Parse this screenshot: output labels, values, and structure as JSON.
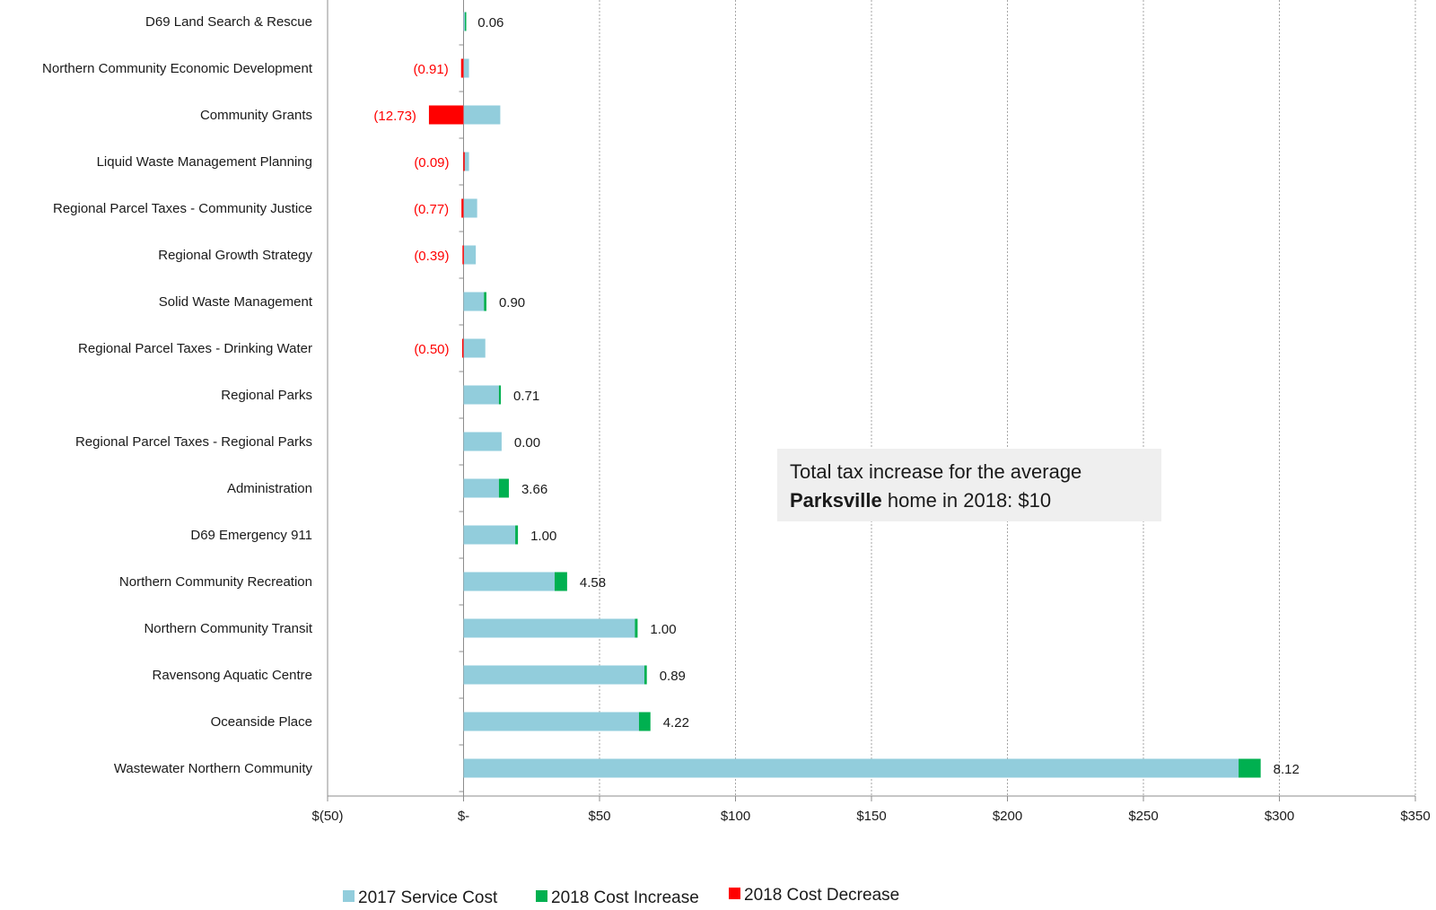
{
  "chart_data": {
    "type": "bar",
    "orientation": "horizontal",
    "stacked": true,
    "categories": [
      "D69 Land Search & Rescue",
      "Northern Community Economic Development",
      "Community Grants",
      "Liquid Waste Management Planning",
      "Regional Parcel Taxes - Community Justice",
      "Regional Growth Strategy",
      "Solid Waste  Management",
      "Regional Parcel Taxes - Drinking Water",
      "Regional Parks",
      "Regional Parcel Taxes - Regional Parks",
      "Administration",
      "D69 Emergency 911",
      "Northern Community Recreation",
      "Northern Community Transit",
      "Ravensong Aquatic Centre",
      "Oceanside Place",
      "Wastewater Northern Community"
    ],
    "series": [
      {
        "name": "2017 Service Cost",
        "color": "#92cddc",
        "values": [
          0.5,
          2,
          13.5,
          2,
          5,
          4.5,
          7.5,
          8,
          13,
          14,
          13,
          19,
          33.5,
          63,
          66.5,
          64.5,
          285
        ]
      },
      {
        "name": "2018 Cost Increase",
        "color": "#00b050",
        "values": [
          0.06,
          0,
          0,
          0,
          0,
          0,
          0.9,
          0,
          0.71,
          0,
          3.66,
          1.0,
          4.58,
          1.0,
          0.89,
          4.22,
          8.12
        ]
      },
      {
        "name": "2018 Cost Decrease",
        "color": "#ff0000",
        "values": [
          0,
          -0.91,
          -12.73,
          -0.09,
          -0.77,
          -0.39,
          0,
          -0.5,
          0,
          0,
          0,
          0,
          0,
          0,
          0,
          0,
          0
        ]
      }
    ],
    "data_labels": [
      "0.06",
      "(0.91)",
      "(12.73)",
      "(0.09)",
      "(0.77)",
      "(0.39)",
      "0.90",
      "(0.50)",
      "0.71",
      "0.00",
      "3.66",
      "1.00",
      "4.58",
      "1.00",
      "0.89",
      "4.22",
      "8.12"
    ],
    "label_negative": [
      false,
      true,
      true,
      true,
      true,
      true,
      false,
      true,
      false,
      false,
      false,
      false,
      false,
      false,
      false,
      false,
      false
    ],
    "xlim": [
      -50,
      350
    ],
    "x_ticks": [
      -50,
      0,
      50,
      100,
      150,
      200,
      250,
      300,
      350
    ],
    "x_tick_labels": [
      "$(50)",
      "$-",
      "$50",
      "$100",
      "$150",
      "$200",
      "$250",
      "$300",
      "$350"
    ],
    "grid": "vertical dotted",
    "legend_position": "bottom",
    "title": "",
    "xlabel": "",
    "ylabel": ""
  },
  "annotation": {
    "line1": "Total tax increase for the average",
    "bold": "Parksville",
    "line2_rest": " home in 2018: $10"
  },
  "colors": {
    "negative_label": "#ff0000",
    "label": "#1a1a1a",
    "grid": "#a6a6a6",
    "axis": "#8c8c8c"
  }
}
